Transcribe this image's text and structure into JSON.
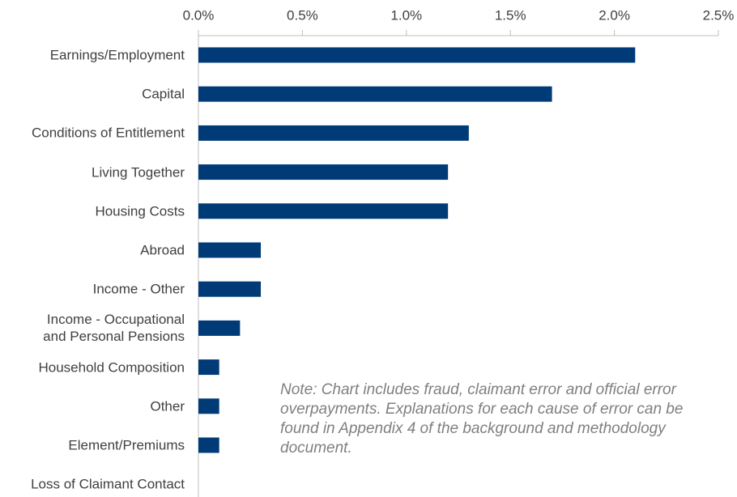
{
  "chart_data": {
    "type": "barh",
    "categories": [
      "Earnings/Employment",
      "Capital",
      "Conditions of Entitlement",
      "Living Together",
      "Housing Costs",
      "Abroad",
      "Income - Other",
      "Income - Occupational\nand Personal Pensions",
      "Household Composition",
      "Other",
      "Element/Premiums",
      "Loss of Claimant Contact"
    ],
    "values": [
      2.1,
      1.7,
      1.3,
      1.2,
      1.2,
      0.3,
      0.3,
      0.2,
      0.1,
      0.1,
      0.1,
      0
    ],
    "color": "#003b78",
    "xlim": [
      0,
      2.5
    ],
    "xticks": [
      {
        "value": 0,
        "label": "0.0%"
      },
      {
        "value": 0.5,
        "label": "0.5%"
      },
      {
        "value": 1,
        "label": "1.0%"
      },
      {
        "value": 1.5,
        "label": "1.5%"
      },
      {
        "value": 2,
        "label": "2.0%"
      },
      {
        "value": 2.5,
        "label": "2.5%"
      }
    ],
    "annotation": "Note: Chart includes fraud, claimant error and official error overpayments. Explanations for each cause of error can be found in Appendix 4 of the background and methodology document."
  }
}
